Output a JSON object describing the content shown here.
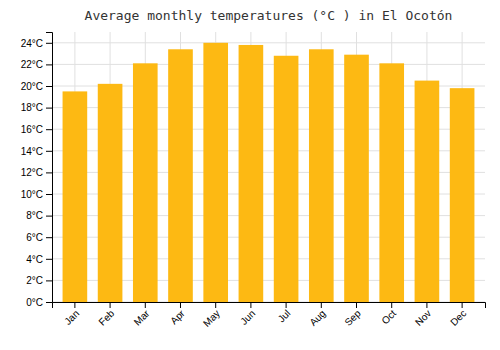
{
  "chart_data": {
    "type": "bar",
    "title": "Average monthly temperatures (°C ) in El Ocotón",
    "categories": [
      "Jan",
      "Feb",
      "Mar",
      "Apr",
      "May",
      "Jun",
      "Jul",
      "Aug",
      "Sep",
      "Oct",
      "Nov",
      "Dec"
    ],
    "values": [
      19.5,
      20.2,
      22.1,
      23.4,
      24.0,
      23.8,
      22.8,
      23.4,
      22.9,
      22.1,
      20.5,
      19.8
    ],
    "color": "#FDB913",
    "ylim": [
      0,
      25
    ],
    "yticks": [
      {
        "value": 0,
        "label": "0°C"
      },
      {
        "value": 2,
        "label": "2°C"
      },
      {
        "value": 4,
        "label": "4°C"
      },
      {
        "value": 6,
        "label": "6°C"
      },
      {
        "value": 8,
        "label": "8°C"
      },
      {
        "value": 10,
        "label": "10°C"
      },
      {
        "value": 12,
        "label": "12°C"
      },
      {
        "value": 14,
        "label": "14°C"
      },
      {
        "value": 16,
        "label": "16°C"
      },
      {
        "value": 18,
        "label": "18°C"
      },
      {
        "value": 20,
        "label": "20°C"
      },
      {
        "value": 22,
        "label": "22°C"
      },
      {
        "value": 24,
        "label": "24°C"
      }
    ],
    "grid": true
  }
}
